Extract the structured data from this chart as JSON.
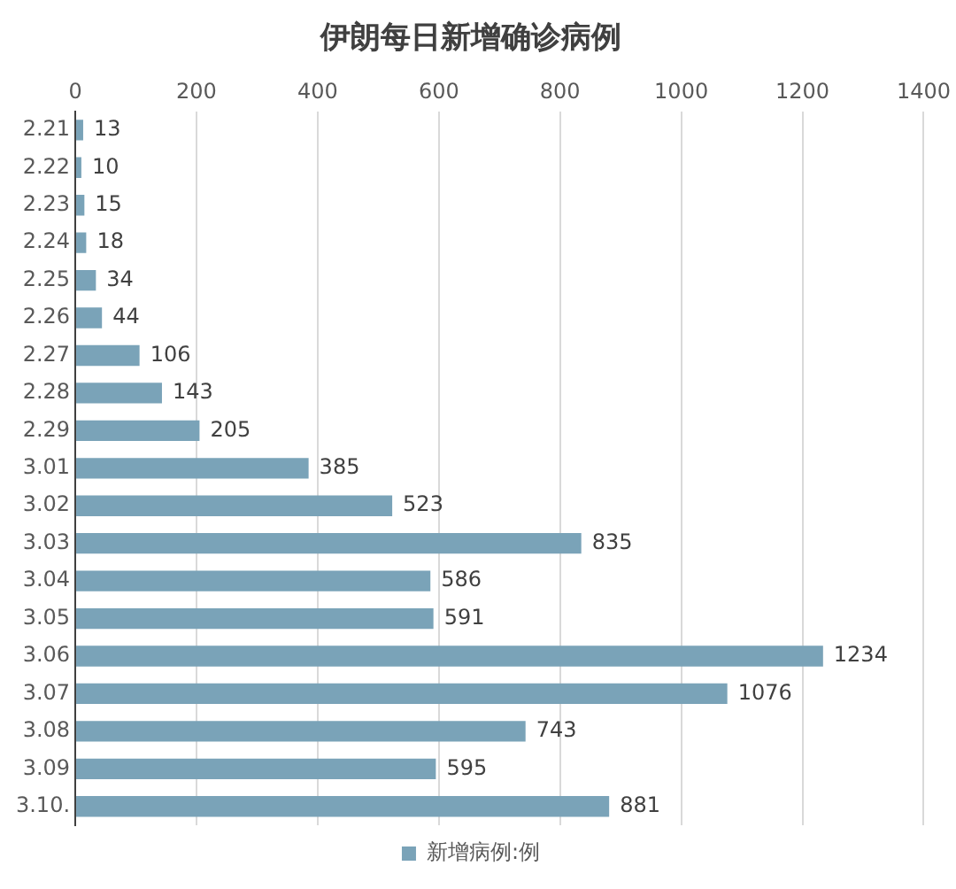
{
  "chart_data": {
    "type": "bar",
    "orientation": "horizontal",
    "title": "伊朗每日新增确诊病例",
    "categories": [
      "2.21",
      "2.22",
      "2.23",
      "2.24",
      "2.25",
      "2.26",
      "2.27",
      "2.28",
      "2.29",
      "3.01",
      "3.02",
      "3.03",
      "3.04",
      "3.05",
      "3.06",
      "3.07",
      "3.08",
      "3.09",
      "3.10."
    ],
    "series": [
      {
        "name": "新增病例:例",
        "color": "#7aa3b8",
        "values": [
          13,
          10,
          15,
          18,
          34,
          44,
          106,
          143,
          205,
          385,
          523,
          835,
          586,
          591,
          1234,
          1076,
          743,
          595,
          881
        ]
      }
    ],
    "xlim": [
      0,
      1400
    ],
    "xticks": [
      0,
      200,
      400,
      600,
      800,
      1000,
      1200,
      1400
    ],
    "grid": "x",
    "legend": "bottom",
    "data_labels": true
  }
}
